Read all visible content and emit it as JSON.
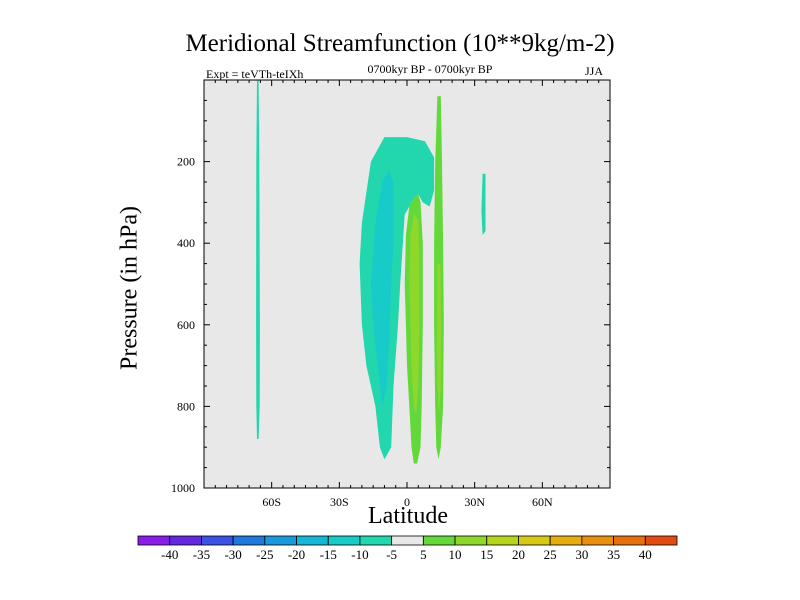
{
  "chart_data": {
    "type": "contour",
    "title": "Meridional Streamfunction (10**9kg/m-2)",
    "subtitle": "0700kyr BP - 0700kyr BP",
    "expt_label": "Expt = teVTh-teIXh",
    "season": "JJA",
    "xlabel": "Latitude",
    "ylabel": "Pressure (in hPa)",
    "xlim": [
      -90,
      90
    ],
    "ylim": [
      1000,
      0
    ],
    "x_ticks": [
      {
        "value": -60,
        "label": "60S"
      },
      {
        "value": -30,
        "label": "30S"
      },
      {
        "value": 0,
        "label": "0"
      },
      {
        "value": 30,
        "label": "30N"
      },
      {
        "value": 60,
        "label": "60N"
      }
    ],
    "y_ticks": [
      {
        "value": 200,
        "label": "200"
      },
      {
        "value": 400,
        "label": "400"
      },
      {
        "value": 600,
        "label": "600"
      },
      {
        "value": 800,
        "label": "800"
      },
      {
        "value": 1000,
        "label": "1000"
      }
    ],
    "background_color": "#e8e8e8",
    "colorbar": {
      "labels": [
        "-40",
        "-35",
        "-30",
        "-25",
        "-20",
        "-15",
        "-10",
        "-5",
        "5",
        "10",
        "15",
        "20",
        "25",
        "30",
        "35",
        "40"
      ],
      "colors": [
        "#8a1ce8",
        "#6428e0",
        "#3c52e6",
        "#1f78dc",
        "#1a99dc",
        "#15b6d6",
        "#19cbc8",
        "#22d6ae",
        "#e8e8e8",
        "#63d83a",
        "#8ed82c",
        "#b7d41e",
        "#d8c816",
        "#e6ad10",
        "#e8900e",
        "#e4700e",
        "#e24c10"
      ]
    },
    "regions": [
      {
        "level": -5,
        "color": "#22d6ae",
        "points": [
          [
            -66.5,
            0
          ],
          [
            -65.8,
            0
          ],
          [
            -65.5,
            200
          ],
          [
            -65.2,
            600
          ],
          [
            -65.3,
            800
          ],
          [
            -65.8,
            880
          ],
          [
            -66.5,
            880
          ],
          [
            -66.8,
            800
          ],
          [
            -66.9,
            600
          ],
          [
            -66.8,
            200
          ]
        ]
      },
      {
        "level": -5,
        "color": "#22d6ae",
        "points": [
          [
            -20,
            350
          ],
          [
            -16,
            200
          ],
          [
            -10,
            140
          ],
          [
            0,
            140
          ],
          [
            8,
            150
          ],
          [
            12,
            190
          ],
          [
            12,
            270
          ],
          [
            10,
            310
          ],
          [
            7,
            300
          ],
          [
            5,
            280
          ],
          [
            3,
            290
          ],
          [
            1,
            310
          ],
          [
            -1,
            330
          ],
          [
            -3,
            500
          ],
          [
            -4,
            600
          ],
          [
            -6,
            750
          ],
          [
            -7,
            900
          ],
          [
            -10,
            930
          ],
          [
            -12,
            900
          ],
          [
            -14,
            800
          ],
          [
            -18,
            700
          ],
          [
            -20,
            600
          ],
          [
            -21,
            450
          ]
        ]
      },
      {
        "level": -10,
        "color": "#19cbc8",
        "points": [
          [
            -16,
            500
          ],
          [
            -14,
            350
          ],
          [
            -11,
            250
          ],
          [
            -8,
            220
          ],
          [
            -6,
            250
          ],
          [
            -6,
            400
          ],
          [
            -7,
            500
          ],
          [
            -8,
            650
          ],
          [
            -9,
            750
          ],
          [
            -11,
            800
          ],
          [
            -13,
            700
          ],
          [
            -15,
            600
          ]
        ]
      },
      {
        "level": -5,
        "color": "#22d6ae",
        "points": [
          [
            33.5,
            230
          ],
          [
            34.8,
            230
          ],
          [
            34.8,
            370
          ],
          [
            33.5,
            380
          ],
          [
            33,
            320
          ]
        ]
      },
      {
        "level": 5,
        "color": "#63d83a",
        "points": [
          [
            -1,
            500
          ],
          [
            -0.5,
            380
          ],
          [
            1,
            310
          ],
          [
            3,
            290
          ],
          [
            5,
            280
          ],
          [
            6,
            300
          ],
          [
            7,
            400
          ],
          [
            7,
            600
          ],
          [
            6.5,
            800
          ],
          [
            6,
            900
          ],
          [
            4.5,
            940
          ],
          [
            3,
            940
          ],
          [
            2,
            900
          ],
          [
            1,
            800
          ],
          [
            0,
            700
          ],
          [
            -0.5,
            600
          ]
        ]
      },
      {
        "level": 10,
        "color": "#8ed82c",
        "points": [
          [
            1,
            500
          ],
          [
            1.5,
            380
          ],
          [
            3,
            330
          ],
          [
            5,
            340
          ],
          [
            5.5,
            450
          ],
          [
            5.5,
            600
          ],
          [
            5,
            750
          ],
          [
            4,
            820
          ],
          [
            3,
            800
          ],
          [
            2,
            700
          ],
          [
            1.5,
            600
          ]
        ]
      },
      {
        "level": 5,
        "color": "#63d83a",
        "points": [
          [
            12.5,
            200
          ],
          [
            13.5,
            40
          ],
          [
            15,
            40
          ],
          [
            15.5,
            200
          ],
          [
            16,
            400
          ],
          [
            16.3,
            600
          ],
          [
            16,
            800
          ],
          [
            15,
            900
          ],
          [
            14,
            930
          ],
          [
            13,
            900
          ],
          [
            12.5,
            800
          ],
          [
            12,
            600
          ],
          [
            12,
            400
          ]
        ]
      },
      {
        "level": 10,
        "color": "#8ed82c",
        "points": [
          [
            13.3,
            550
          ],
          [
            13.5,
            450
          ],
          [
            14.8,
            450
          ],
          [
            15.2,
            600
          ],
          [
            15,
            750
          ],
          [
            14.2,
            820
          ],
          [
            13.5,
            750
          ],
          [
            13.2,
            650
          ]
        ]
      }
    ]
  }
}
